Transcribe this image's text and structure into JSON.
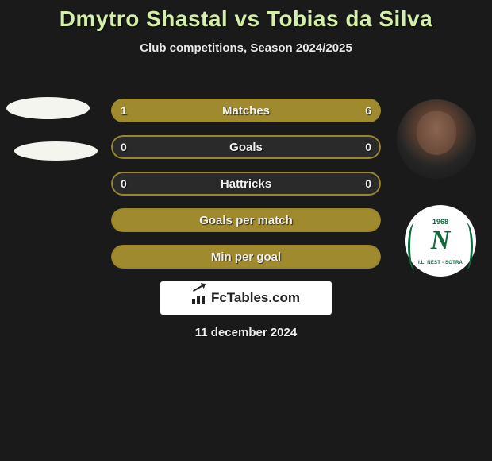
{
  "title": {
    "player1": "Dmytro Shastal",
    "vs": "vs",
    "player2": "Tobias da Silva",
    "color": "#d4f0a8",
    "fontsize": 28
  },
  "subtitle": "Club competitions, Season 2024/2025",
  "background_color": "#1a1a1a",
  "right_club": {
    "year": "1968",
    "letter": "N",
    "name": "I.L. NEST - SOTRA",
    "color": "#0a6b3a"
  },
  "stats": {
    "bar_full_color": "#a08a2e",
    "bar_border_color": "#9a8530",
    "bar_empty_color": "#3a3a3a",
    "rows": [
      {
        "label": "Matches",
        "left_val": "1",
        "right_val": "6",
        "left_pct": 14,
        "right_pct": 86
      },
      {
        "label": "Goals",
        "left_val": "0",
        "right_val": "0",
        "left_pct": 0,
        "right_pct": 0
      },
      {
        "label": "Hattricks",
        "left_val": "0",
        "right_val": "0",
        "left_pct": 0,
        "right_pct": 0
      },
      {
        "label": "Goals per match",
        "left_val": "",
        "right_val": "",
        "left_pct": 100,
        "right_pct": 0
      },
      {
        "label": "Min per goal",
        "left_val": "",
        "right_val": "",
        "left_pct": 100,
        "right_pct": 0
      }
    ]
  },
  "logo_text": "FcTables.com",
  "date": "11 december 2024"
}
